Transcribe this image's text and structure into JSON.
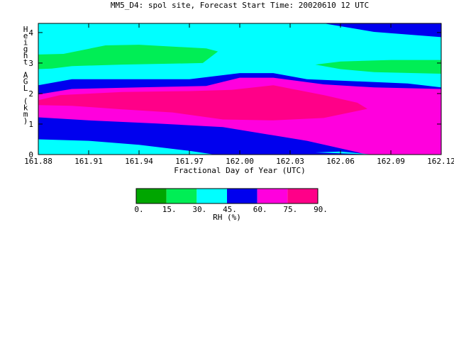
{
  "chart_data": {
    "type": "heatmap",
    "title": "MM5_D4: spol site,  Forecast Start Time: 20020610 12 UTC",
    "xlabel": "Fractional Day of Year (UTC)",
    "ylabel": "Height AGL (km)",
    "xlim": [
      161.88,
      162.12
    ],
    "ylim": [
      0,
      4.3
    ],
    "x_ticks": [
      "161.88",
      "161.91",
      "161.94",
      "161.97",
      "162.00",
      "162.03",
      "162.06",
      "162.09",
      "162.12"
    ],
    "y_ticks": [
      "0",
      "1",
      "2",
      "3",
      "4"
    ],
    "grid": false,
    "colorbar": {
      "label": "RH (%)",
      "levels": [
        "0.",
        "15.",
        "30.",
        "45.",
        "60.",
        "75.",
        "90."
      ],
      "colors": [
        "#00a600",
        "#00ee55",
        "#00ffff",
        "#0000ee",
        "#ff00dd",
        "#ff0088"
      ]
    },
    "contour_bands": [
      {
        "range": [
          30,
          45
        ],
        "color": "#00ffff",
        "points": [
          [
            161.88,
            0
          ],
          [
            162.12,
            0
          ],
          [
            162.12,
            4.3
          ],
          [
            161.88,
            4.3
          ]
        ]
      },
      {
        "range": [
          45,
          60
        ],
        "color": "#0000ee",
        "points": [
          [
            162.05,
            4.3
          ],
          [
            162.12,
            4.3
          ],
          [
            162.12,
            3.85
          ],
          [
            162.08,
            4.02
          ]
        ]
      },
      {
        "range": [
          15,
          30
        ],
        "color": "#00ee55",
        "points": [
          [
            161.88,
            3.28
          ],
          [
            161.895,
            3.3
          ],
          [
            161.92,
            3.58
          ],
          [
            161.94,
            3.6
          ],
          [
            161.98,
            3.48
          ],
          [
            161.987,
            3.38
          ],
          [
            161.978,
            3.0
          ],
          [
            161.96,
            2.98
          ],
          [
            161.93,
            2.95
          ],
          [
            161.9,
            2.9
          ],
          [
            161.888,
            2.82
          ],
          [
            161.88,
            2.8
          ]
        ]
      },
      {
        "range": [
          15,
          30
        ],
        "color": "#00ee55",
        "points": [
          [
            162.045,
            2.95
          ],
          [
            162.06,
            3.05
          ],
          [
            162.09,
            3.1
          ],
          [
            162.12,
            3.1
          ],
          [
            162.12,
            2.65
          ],
          [
            162.08,
            2.7
          ],
          [
            162.06,
            2.8
          ]
        ]
      },
      {
        "range": [
          45,
          60
        ],
        "color": "#0000ee",
        "points": [
          [
            161.88,
            2.27
          ],
          [
            161.9,
            2.47
          ],
          [
            161.92,
            2.47
          ],
          [
            161.97,
            2.47
          ],
          [
            162.0,
            2.67
          ],
          [
            162.02,
            2.67
          ],
          [
            162.04,
            2.47
          ],
          [
            162.07,
            2.4
          ],
          [
            162.1,
            2.33
          ],
          [
            162.12,
            2.2
          ],
          [
            162.12,
            0
          ],
          [
            161.88,
            0
          ]
        ]
      },
      {
        "range": [
          60,
          75
        ],
        "color": "#ff00dd",
        "points": [
          [
            161.88,
            1.97
          ],
          [
            161.9,
            2.15
          ],
          [
            161.94,
            2.2
          ],
          [
            161.98,
            2.25
          ],
          [
            162.0,
            2.52
          ],
          [
            162.02,
            2.52
          ],
          [
            162.05,
            2.3
          ],
          [
            162.08,
            2.2
          ],
          [
            162.12,
            2.15
          ],
          [
            162.12,
            0
          ],
          [
            162.07,
            0
          ],
          [
            162.04,
            0.35
          ],
          [
            161.99,
            0.57
          ],
          [
            161.95,
            0.8
          ],
          [
            161.9,
            1.0
          ],
          [
            161.88,
            1.05
          ]
        ]
      },
      {
        "range": [
          75,
          90
        ],
        "color": "#ff0088",
        "points": [
          [
            161.88,
            1.78
          ],
          [
            161.893,
            1.95
          ],
          [
            161.93,
            2.05
          ],
          [
            161.97,
            2.08
          ],
          [
            161.995,
            2.12
          ],
          [
            162.02,
            2.27
          ],
          [
            162.05,
            1.95
          ],
          [
            162.07,
            1.7
          ],
          [
            162.076,
            1.5
          ],
          [
            162.05,
            1.2
          ],
          [
            162.02,
            1.12
          ],
          [
            161.99,
            1.15
          ],
          [
            161.96,
            1.38
          ],
          [
            161.93,
            1.48
          ],
          [
            161.9,
            1.6
          ],
          [
            161.88,
            1.62
          ]
        ]
      },
      {
        "range": [
          45,
          60
        ],
        "color": "#0000ee",
        "points": [
          [
            161.88,
            1.22
          ],
          [
            161.91,
            1.12
          ],
          [
            161.95,
            1.02
          ],
          [
            161.99,
            0.9
          ],
          [
            162.04,
            0.45
          ],
          [
            162.07,
            0.08
          ],
          [
            162.075,
            0
          ],
          [
            161.88,
            0
          ]
        ]
      },
      {
        "range": [
          30,
          45
        ],
        "color": "#00ffff",
        "points": [
          [
            161.88,
            0.5
          ],
          [
            161.91,
            0.45
          ],
          [
            161.94,
            0.32
          ],
          [
            161.97,
            0.12
          ],
          [
            161.985,
            0
          ],
          [
            161.88,
            0
          ]
        ]
      },
      {
        "range": [
          30,
          45
        ],
        "color": "#00ffff",
        "points": [
          [
            162.045,
            0.07
          ],
          [
            162.06,
            0.1
          ],
          [
            162.075,
            0.02
          ],
          [
            162.08,
            0
          ]
        ]
      }
    ]
  }
}
